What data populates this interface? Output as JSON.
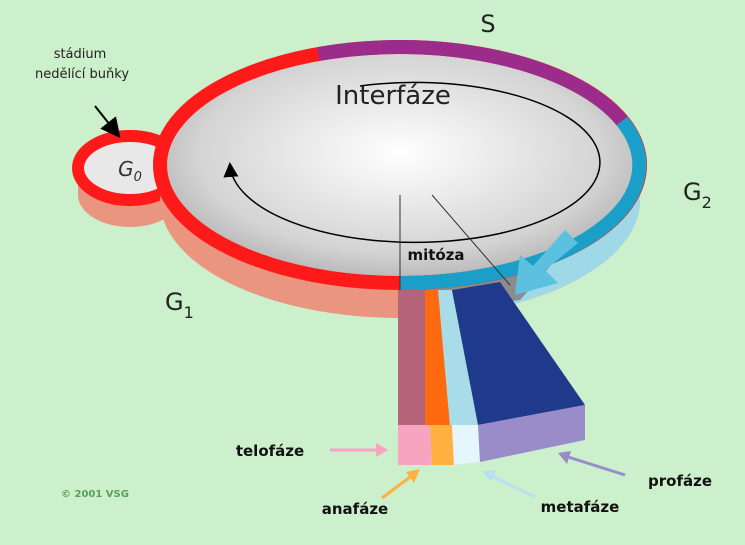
{
  "phases": {
    "s": "S",
    "g0": {
      "base": "G",
      "sub": "0"
    },
    "g1": {
      "base": "G",
      "sub": "1"
    },
    "g2": {
      "base": "G",
      "sub": "2"
    }
  },
  "interphase": "Interfáze",
  "mitosis": "mitóza",
  "note": [
    "stádium",
    "nedělící buňky"
  ],
  "mitosis_phases": {
    "telophase": "telofáze",
    "anaphase": "anafáze",
    "metaphase": "metafáze",
    "prophase": "profáze"
  },
  "copyright": "© 2001 VSG"
}
